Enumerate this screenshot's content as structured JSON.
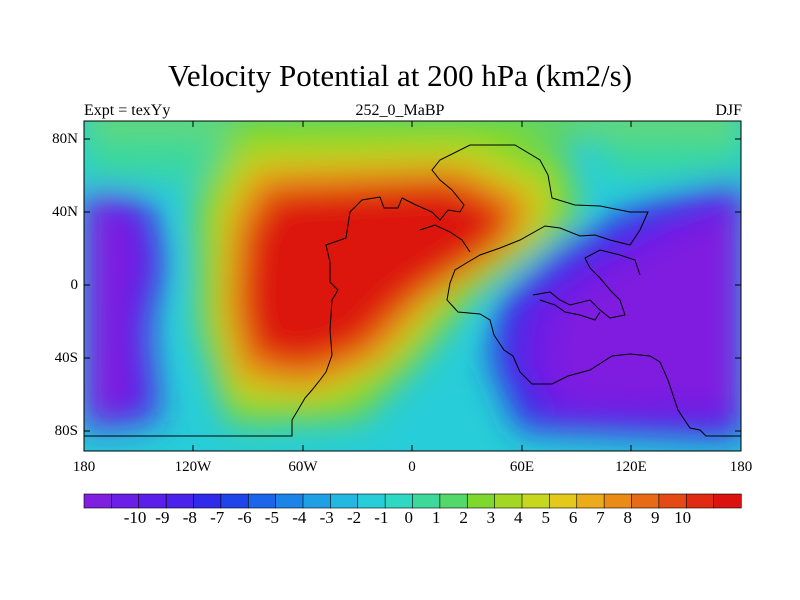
{
  "title": "Velocity Potential at 200 hPa (km2/s)",
  "left_label": "Expt = texYy",
  "center_label": "252_0_MaBP",
  "right_label": "DJF",
  "lat_labels": [
    "80N",
    "40N",
    "0",
    "40S",
    "80S"
  ],
  "lon_labels": [
    "180",
    "120W",
    "60W",
    "0",
    "60E",
    "120E",
    "180"
  ],
  "colorbar": {
    "labels": [
      "-10",
      "-9",
      "-8",
      "-7",
      "-6",
      "-5",
      "-4",
      "-3",
      "-2",
      "-1",
      "0",
      "1",
      "2",
      "3",
      "4",
      "5",
      "6",
      "7",
      "8",
      "9",
      "10"
    ],
    "colors": [
      "#7f1fe0",
      "#6a1ee6",
      "#5a1fe8",
      "#4a22ea",
      "#2f2be9",
      "#1f45ea",
      "#1a65ea",
      "#1c84e7",
      "#1fa0e5",
      "#22b8e1",
      "#27cdd8",
      "#2fd8c2",
      "#3ed89a",
      "#55d86a",
      "#7ed82e",
      "#a2d824",
      "#c7d61f",
      "#e4c81c",
      "#ebab1a",
      "#ea8b18",
      "#e76a16",
      "#e44a14",
      "#e02a12",
      "#dc120f"
    ]
  },
  "map": {
    "region": "global",
    "projection": "cylindrical-equidistant",
    "field": "velocity potential 200 hPa",
    "lon_range": [
      -180,
      180
    ],
    "lat_range": [
      -90,
      90
    ]
  }
}
